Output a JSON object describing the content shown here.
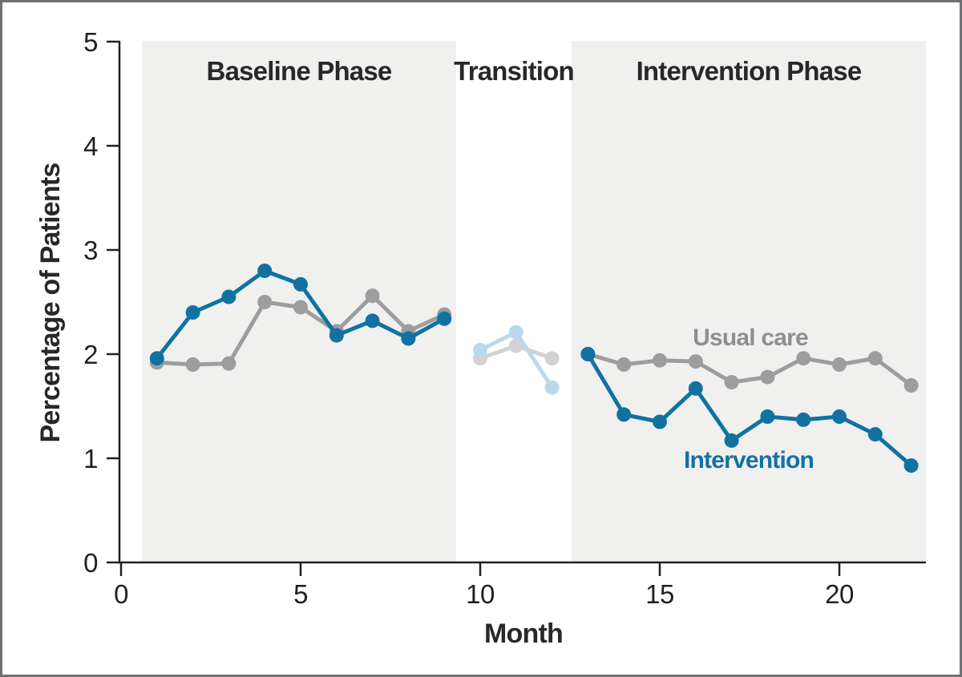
{
  "figure": {
    "frame_color": "#6e7072",
    "background_color": "#ffffff"
  },
  "chart_data": {
    "type": "line",
    "title": "",
    "xlabel": "Month",
    "ylabel": "Percentage of Patients",
    "xlim": [
      0,
      22.5
    ],
    "ylim": [
      0,
      5
    ],
    "x_ticks": [
      0,
      5,
      10,
      15,
      20
    ],
    "y_ticks": [
      0,
      1,
      2,
      3,
      4,
      5
    ],
    "grid": false,
    "axis_color": "#231f20",
    "band_color": "#f0f0ef",
    "phases": [
      {
        "label": "Baseline Phase",
        "month_start": 0.58,
        "month_end": 9.33,
        "shaded": true
      },
      {
        "label": "Transition",
        "month_start": 9.33,
        "month_end": 12.54,
        "shaded": false
      },
      {
        "label": "Intervention Phase",
        "month_start": 12.54,
        "month_end": 22.41,
        "shaded": true
      }
    ],
    "series": [
      {
        "name": "Usual care",
        "color": "#9d9d9d",
        "faded_color": "#d2d2d2",
        "segments": [
          {
            "phase": "baseline",
            "faded": false,
            "x": [
              1,
              2,
              3,
              4,
              5,
              6,
              7,
              8,
              9
            ],
            "y": [
              1.92,
              1.9,
              1.91,
              2.5,
              2.45,
              2.22,
              2.56,
              2.22,
              2.38
            ]
          },
          {
            "phase": "transition",
            "faded": true,
            "x": [
              10,
              11,
              12
            ],
            "y": [
              1.96,
              2.08,
              1.96
            ]
          },
          {
            "phase": "intervention",
            "faded": false,
            "x": [
              13,
              14,
              15,
              16,
              17,
              18,
              19,
              20,
              21,
              22
            ],
            "y": [
              2.0,
              1.9,
              1.94,
              1.93,
              1.73,
              1.78,
              1.96,
              1.9,
              1.96,
              1.7
            ]
          }
        ]
      },
      {
        "name": "Intervention",
        "color": "#1172a2",
        "faded_color": "#b8d9ed",
        "segments": [
          {
            "phase": "baseline",
            "faded": false,
            "x": [
              1,
              2,
              3,
              4,
              5,
              6,
              7,
              8,
              9
            ],
            "y": [
              1.96,
              2.4,
              2.55,
              2.8,
              2.67,
              2.18,
              2.32,
              2.15,
              2.34
            ]
          },
          {
            "phase": "transition",
            "faded": true,
            "x": [
              10,
              11,
              12
            ],
            "y": [
              2.04,
              2.21,
              1.68
            ]
          },
          {
            "phase": "intervention",
            "faded": false,
            "x": [
              13,
              14,
              15,
              16,
              17,
              18,
              19,
              20,
              21,
              22
            ],
            "y": [
              2.0,
              1.42,
              1.35,
              1.67,
              1.17,
              1.4,
              1.37,
              1.4,
              1.23,
              0.93
            ]
          }
        ]
      }
    ],
    "annotations": [
      {
        "text": "Usual care",
        "color": "#8f8f8f"
      },
      {
        "text": "Intervention",
        "color": "#1172a2"
      }
    ],
    "legend_position": "inline-annotations"
  }
}
